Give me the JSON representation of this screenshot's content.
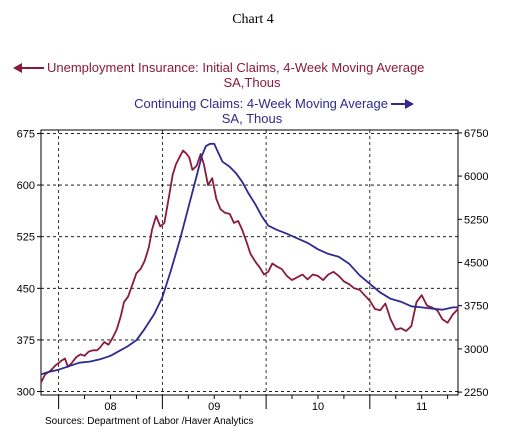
{
  "chart_data": {
    "type": "line",
    "title": "Chart 4",
    "left_label_line1": "Unemployment Insurance: Initial Claims, 4-Week Moving Average",
    "left_label_line2": "SA,Thous",
    "right_label_line1": "Continuing Claims: 4-Week Moving Average",
    "right_label_line2": "SA, Thous",
    "source": "Sources:  Department of Labor /Haver Analytics",
    "y_left": {
      "min": 295,
      "max": 680,
      "ticks": [
        300,
        375,
        450,
        525,
        600,
        675
      ]
    },
    "y_right": {
      "min": 2200,
      "max": 6800,
      "ticks": [
        2250,
        3000,
        3750,
        4500,
        5250,
        6000,
        6750
      ]
    },
    "x": {
      "min": 2007.33,
      "max": 2011.35,
      "year_lines": [
        2007.5,
        2008.5,
        2009.5,
        2010.5
      ],
      "quarter_lines": [
        2007.75,
        2008.0,
        2008.25,
        2008.75,
        2009.0,
        2009.25,
        2009.75,
        2010.0,
        2010.25,
        2010.75,
        2011.0,
        2011.25
      ]
    },
    "x_tick_labels": [
      {
        "label": "08",
        "x": 2008.0
      },
      {
        "label": "09",
        "x": 2009.0
      },
      {
        "label": "10",
        "x": 2010.0
      },
      {
        "label": "11",
        "x": 2011.0
      }
    ],
    "grid": true,
    "series": [
      {
        "name": "Unemployment Insurance: Initial Claims, 4-Week Moving Average",
        "axis": "left",
        "color": "#8B1A3A",
        "points": [
          [
            2007.33,
            313
          ],
          [
            2007.37,
            325
          ],
          [
            2007.42,
            330
          ],
          [
            2007.47,
            338
          ],
          [
            2007.52,
            344
          ],
          [
            2007.56,
            348
          ],
          [
            2007.59,
            336
          ],
          [
            2007.63,
            342
          ],
          [
            2007.67,
            350
          ],
          [
            2007.71,
            354
          ],
          [
            2007.75,
            352
          ],
          [
            2007.79,
            358
          ],
          [
            2007.83,
            360
          ],
          [
            2007.87,
            360
          ],
          [
            2007.9,
            364
          ],
          [
            2007.94,
            372
          ],
          [
            2007.98,
            368
          ],
          [
            2008.02,
            378
          ],
          [
            2008.06,
            390
          ],
          [
            2008.1,
            410
          ],
          [
            2008.13,
            430
          ],
          [
            2008.17,
            438
          ],
          [
            2008.21,
            455
          ],
          [
            2008.25,
            472
          ],
          [
            2008.29,
            478
          ],
          [
            2008.33,
            490
          ],
          [
            2008.37,
            510
          ],
          [
            2008.4,
            535
          ],
          [
            2008.44,
            555
          ],
          [
            2008.48,
            540
          ],
          [
            2008.52,
            545
          ],
          [
            2008.56,
            580
          ],
          [
            2008.6,
            615
          ],
          [
            2008.63,
            630
          ],
          [
            2008.67,
            642
          ],
          [
            2008.7,
            650
          ],
          [
            2008.73,
            646
          ],
          [
            2008.76,
            640
          ],
          [
            2008.79,
            622
          ],
          [
            2008.83,
            628
          ],
          [
            2008.87,
            645
          ],
          [
            2008.9,
            630
          ],
          [
            2008.94,
            600
          ],
          [
            2008.98,
            610
          ],
          [
            2009.02,
            580
          ],
          [
            2009.06,
            565
          ],
          [
            2009.1,
            560
          ],
          [
            2009.15,
            558
          ],
          [
            2009.19,
            545
          ],
          [
            2009.23,
            548
          ],
          [
            2009.27,
            535
          ],
          [
            2009.31,
            518
          ],
          [
            2009.35,
            500
          ],
          [
            2009.4,
            488
          ],
          [
            2009.44,
            480
          ],
          [
            2009.48,
            470
          ],
          [
            2009.52,
            474
          ],
          [
            2009.56,
            486
          ],
          [
            2009.6,
            482
          ],
          [
            2009.65,
            478
          ],
          [
            2009.7,
            468
          ],
          [
            2009.75,
            462
          ],
          [
            2009.8,
            466
          ],
          [
            2009.85,
            470
          ],
          [
            2009.9,
            463
          ],
          [
            2009.95,
            470
          ],
          [
            2010.0,
            468
          ],
          [
            2010.05,
            462
          ],
          [
            2010.1,
            470
          ],
          [
            2010.15,
            474
          ],
          [
            2010.2,
            468
          ],
          [
            2010.25,
            460
          ],
          [
            2010.3,
            456
          ],
          [
            2010.35,
            450
          ],
          [
            2010.4,
            448
          ],
          [
            2010.45,
            440
          ],
          [
            2010.5,
            432
          ],
          [
            2010.55,
            420
          ],
          [
            2010.6,
            418
          ],
          [
            2010.65,
            428
          ],
          [
            2010.7,
            405
          ],
          [
            2010.75,
            390
          ],
          [
            2010.8,
            392
          ],
          [
            2010.85,
            388
          ],
          [
            2010.9,
            395
          ],
          [
            2010.95,
            430
          ],
          [
            2011.0,
            440
          ],
          [
            2011.05,
            425
          ],
          [
            2011.1,
            422
          ],
          [
            2011.15,
            418
          ],
          [
            2011.2,
            405
          ],
          [
            2011.25,
            400
          ],
          [
            2011.3,
            412
          ],
          [
            2011.35,
            420
          ]
        ]
      },
      {
        "name": "Continuing Claims: 4-Week Moving Average",
        "axis": "right",
        "color": "#2E2A8E",
        "points": [
          [
            2007.33,
            2560
          ],
          [
            2007.4,
            2600
          ],
          [
            2007.5,
            2640
          ],
          [
            2007.6,
            2700
          ],
          [
            2007.7,
            2760
          ],
          [
            2007.8,
            2780
          ],
          [
            2007.9,
            2820
          ],
          [
            2008.0,
            2880
          ],
          [
            2008.08,
            2960
          ],
          [
            2008.16,
            3040
          ],
          [
            2008.25,
            3150
          ],
          [
            2008.33,
            3350
          ],
          [
            2008.42,
            3600
          ],
          [
            2008.5,
            3900
          ],
          [
            2008.58,
            4350
          ],
          [
            2008.67,
            4900
          ],
          [
            2008.75,
            5450
          ],
          [
            2008.83,
            6000
          ],
          [
            2008.88,
            6350
          ],
          [
            2008.92,
            6520
          ],
          [
            2008.96,
            6560
          ],
          [
            2009.0,
            6560
          ],
          [
            2009.04,
            6400
          ],
          [
            2009.08,
            6250
          ],
          [
            2009.15,
            6160
          ],
          [
            2009.21,
            6050
          ],
          [
            2009.27,
            5900
          ],
          [
            2009.33,
            5700
          ],
          [
            2009.4,
            5500
          ],
          [
            2009.46,
            5300
          ],
          [
            2009.52,
            5140
          ],
          [
            2009.6,
            5070
          ],
          [
            2009.7,
            5000
          ],
          [
            2009.8,
            4920
          ],
          [
            2009.9,
            4840
          ],
          [
            2010.0,
            4730
          ],
          [
            2010.1,
            4650
          ],
          [
            2010.2,
            4600
          ],
          [
            2010.3,
            4480
          ],
          [
            2010.4,
            4280
          ],
          [
            2010.5,
            4130
          ],
          [
            2010.6,
            3980
          ],
          [
            2010.7,
            3870
          ],
          [
            2010.8,
            3820
          ],
          [
            2010.9,
            3740
          ],
          [
            2011.0,
            3720
          ],
          [
            2011.1,
            3700
          ],
          [
            2011.2,
            3680
          ],
          [
            2011.3,
            3720
          ],
          [
            2011.35,
            3720
          ]
        ]
      }
    ]
  }
}
